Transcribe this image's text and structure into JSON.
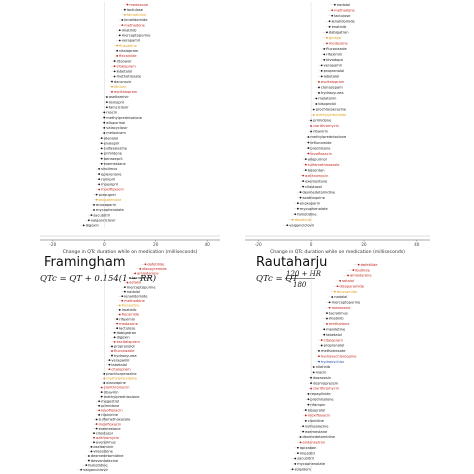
{
  "chart_data": [
    {
      "type": "scatter",
      "panel": "top-left",
      "title": "",
      "xlabel": "Change in QTc duration while on medication (milliseconds)",
      "xticks": [
        -20,
        0,
        20,
        40
      ],
      "xlim": [
        -25,
        45
      ],
      "drugs": [
        {
          "name": "medazone",
          "value": 9,
          "color": "red"
        },
        {
          "name": "lactulose",
          "value": 8,
          "color": "black"
        },
        {
          "name": "famotidine",
          "value": 8,
          "color": "orange"
        },
        {
          "name": "lenalidomide",
          "value": 7,
          "color": "black"
        },
        {
          "name": "methadone",
          "value": 7,
          "color": "red"
        },
        {
          "name": "imatinib",
          "value": 6,
          "color": "black"
        },
        {
          "name": "mercaptopurine",
          "value": 6,
          "color": "black"
        },
        {
          "name": "verapamil",
          "value": 6,
          "color": "black"
        },
        {
          "name": "fluoxetine",
          "value": 5,
          "color": "orange"
        },
        {
          "name": "citalopram",
          "value": 5,
          "color": "black"
        },
        {
          "name": "flecainide",
          "value": 5,
          "color": "red"
        },
        {
          "name": "ritonavir",
          "value": 4,
          "color": "black"
        },
        {
          "name": "citalopram",
          "value": 4,
          "color": "red"
        },
        {
          "name": "labetalol",
          "value": 4,
          "color": "black"
        },
        {
          "name": "methotrexate",
          "value": 4,
          "color": "black"
        },
        {
          "name": "darunavir",
          "value": 3,
          "color": "black"
        },
        {
          "name": "lithium",
          "value": 3,
          "color": "orange"
        },
        {
          "name": "escitalopram",
          "value": 3,
          "color": "red"
        },
        {
          "name": "oseltamivir",
          "value": 1,
          "color": "black"
        },
        {
          "name": "lisinopril",
          "value": 1,
          "color": "black"
        },
        {
          "name": "famciclovir",
          "value": 1,
          "color": "black"
        },
        {
          "name": "niacin",
          "value": 0,
          "color": "black"
        },
        {
          "name": "methylprednisolone",
          "value": 0,
          "color": "black"
        },
        {
          "name": "allopurinol",
          "value": 0,
          "color": "black"
        },
        {
          "name": "valacyclovir",
          "value": 0,
          "color": "black"
        },
        {
          "name": "meloxicam",
          "value": 0,
          "color": "black"
        },
        {
          "name": "atenolol",
          "value": -1,
          "color": "black"
        },
        {
          "name": "enalapril",
          "value": -1,
          "color": "black"
        },
        {
          "name": "sulfasalazine",
          "value": -1,
          "color": "black"
        },
        {
          "name": "primidone",
          "value": -1,
          "color": "black"
        },
        {
          "name": "benazepril",
          "value": -1,
          "color": "black"
        },
        {
          "name": "exemestane",
          "value": -1,
          "color": "black"
        },
        {
          "name": "sirolimus",
          "value": -2,
          "color": "black"
        },
        {
          "name": "eplerenone",
          "value": -2,
          "color": "black"
        },
        {
          "name": "ramipril",
          "value": -2,
          "color": "black"
        },
        {
          "name": "moexipril",
          "value": -2,
          "color": "black"
        },
        {
          "name": "moxifloxacin",
          "value": -2,
          "color": "red"
        },
        {
          "name": "prasugrel",
          "value": -3,
          "color": "black"
        },
        {
          "name": "propafenone",
          "value": -3,
          "color": "orange"
        },
        {
          "name": "enoxaparin",
          "value": -4,
          "color": "black"
        },
        {
          "name": "mycophenolate",
          "value": -4,
          "color": "black"
        },
        {
          "name": "sacubitril",
          "value": -5,
          "color": "black"
        },
        {
          "name": "valganciclovir",
          "value": -6,
          "color": "black"
        },
        {
          "name": "digoxin",
          "value": -8,
          "color": "black"
        }
      ]
    },
    {
      "type": "scatter",
      "panel": "top-right",
      "title": "",
      "xlabel": "Change in QTc duration while on medication (milliseconds)",
      "xticks": [
        -20,
        0,
        20,
        40
      ],
      "xlim": [
        -25,
        45
      ],
      "drugs": [
        {
          "name": "nadolol",
          "value": 9,
          "color": "black"
        },
        {
          "name": "methadone",
          "value": 8,
          "color": "red"
        },
        {
          "name": "lactulose",
          "value": 8,
          "color": "black"
        },
        {
          "name": "lenalidomide",
          "value": 7,
          "color": "black"
        },
        {
          "name": "imatinib",
          "value": 7,
          "color": "black"
        },
        {
          "name": "dabigatran",
          "value": 6,
          "color": "black"
        },
        {
          "name": "ginkgo",
          "value": 6,
          "color": "orange"
        },
        {
          "name": "medazone",
          "value": 6,
          "color": "red"
        },
        {
          "name": "fluconazole",
          "value": 5,
          "color": "black"
        },
        {
          "name": "rifaximin",
          "value": 5,
          "color": "black"
        },
        {
          "name": "levodopa",
          "value": 5,
          "color": "black"
        },
        {
          "name": "verapamil",
          "value": 4,
          "color": "black"
        },
        {
          "name": "propranolol",
          "value": 4,
          "color": "black"
        },
        {
          "name": "labetalol",
          "value": 4,
          "color": "black"
        },
        {
          "name": "escitalopram",
          "value": 3,
          "color": "red"
        },
        {
          "name": "clonazepam",
          "value": 3,
          "color": "black"
        },
        {
          "name": "hydroxyurea",
          "value": 3,
          "color": "black"
        },
        {
          "name": "melatonin",
          "value": 2,
          "color": "black"
        },
        {
          "name": "bisoprolol",
          "value": 2,
          "color": "black"
        },
        {
          "name": "prochlorperazine",
          "value": 1,
          "color": "black"
        },
        {
          "name": "methylphenidate",
          "value": 1,
          "color": "orange"
        },
        {
          "name": "primidone",
          "value": 0,
          "color": "black"
        },
        {
          "name": "clarithromycin",
          "value": 0,
          "color": "red"
        },
        {
          "name": "ribavirin",
          "value": 0,
          "color": "black"
        },
        {
          "name": "methylprednisolone",
          "value": -1,
          "color": "black"
        },
        {
          "name": "leflunomide",
          "value": -1,
          "color": "black"
        },
        {
          "name": "prednisone",
          "value": -1,
          "color": "black"
        },
        {
          "name": "levofloxacin",
          "value": -1,
          "color": "red"
        },
        {
          "name": "allopurinol",
          "value": -2,
          "color": "black"
        },
        {
          "name": "sulfamethoxazole",
          "value": -2,
          "color": "red"
        },
        {
          "name": "bosentan",
          "value": -2,
          "color": "black"
        },
        {
          "name": "azithromycin",
          "value": -3,
          "color": "red"
        },
        {
          "name": "exemestane",
          "value": -3,
          "color": "black"
        },
        {
          "name": "cilostazol",
          "value": -3,
          "color": "black"
        },
        {
          "name": "dexmedetomidine",
          "value": -4,
          "color": "black"
        },
        {
          "name": "azathioprine",
          "value": -4,
          "color": "black"
        },
        {
          "name": "enoxaparin",
          "value": -5,
          "color": "black"
        },
        {
          "name": "mycophenolate",
          "value": -5,
          "color": "black"
        },
        {
          "name": "famotidine",
          "value": -6,
          "color": "black"
        },
        {
          "name": "dasatinib",
          "value": -7,
          "color": "orange"
        },
        {
          "name": "valganciclovir",
          "value": -9,
          "color": "black"
        }
      ]
    },
    {
      "type": "scatter",
      "panel": "bottom-left",
      "title": "Framingham",
      "formula": "QTc = QT + 0.154(1 − RR)",
      "xlabel": "",
      "xlim": [
        -25,
        45
      ],
      "drugs": [
        {
          "name": "dofetilide",
          "value": 16,
          "color": "red"
        },
        {
          "name": "disopyramide",
          "value": 14,
          "color": "red"
        },
        {
          "name": "amiodarone",
          "value": 12,
          "color": "red"
        },
        {
          "name": "tacrolimus",
          "value": 10,
          "color": "black"
        },
        {
          "name": "sotalol",
          "value": 9,
          "color": "red"
        },
        {
          "name": "mercaptopurine",
          "value": 8,
          "color": "black"
        },
        {
          "name": "nadolol",
          "value": 8,
          "color": "black"
        },
        {
          "name": "lenalidomide",
          "value": 7,
          "color": "black"
        },
        {
          "name": "methadone",
          "value": 7,
          "color": "red"
        },
        {
          "name": "fluoxetine",
          "value": 6,
          "color": "orange"
        },
        {
          "name": "imatinib",
          "value": 6,
          "color": "black"
        },
        {
          "name": "flecainide",
          "value": 6,
          "color": "red"
        },
        {
          "name": "rifaximin",
          "value": 5,
          "color": "black"
        },
        {
          "name": "medazone",
          "value": 5,
          "color": "red"
        },
        {
          "name": "lactulose",
          "value": 5,
          "color": "black"
        },
        {
          "name": "dabigatran",
          "value": 4,
          "color": "black"
        },
        {
          "name": "digoxin",
          "value": 4,
          "color": "black"
        },
        {
          "name": "escitalopram",
          "value": 4,
          "color": "red"
        },
        {
          "name": "propranolol",
          "value": 3,
          "color": "black"
        },
        {
          "name": "fluconazole",
          "value": 3,
          "color": "red"
        },
        {
          "name": "hydroxyurea",
          "value": 3,
          "color": "black"
        },
        {
          "name": "verapamil",
          "value": 2,
          "color": "black"
        },
        {
          "name": "labetalol",
          "value": 2,
          "color": "black"
        },
        {
          "name": "citalopram",
          "value": 2,
          "color": "red"
        },
        {
          "name": "prochlorperazine",
          "value": 0,
          "color": "black"
        },
        {
          "name": "methylphenidate",
          "value": 0,
          "color": "orange"
        },
        {
          "name": "olanzapine",
          "value": 0,
          "color": "black"
        },
        {
          "name": "clarithromycin",
          "value": -1,
          "color": "red"
        },
        {
          "name": "ribavirin",
          "value": -1,
          "color": "black"
        },
        {
          "name": "methylprednisolone",
          "value": -1,
          "color": "black"
        },
        {
          "name": "megestrol",
          "value": -2,
          "color": "black"
        },
        {
          "name": "primidone",
          "value": -2,
          "color": "black"
        },
        {
          "name": "levofloxacin",
          "value": -2,
          "color": "red"
        },
        {
          "name": "rilpivirine",
          "value": -2,
          "color": "black"
        },
        {
          "name": "sulfamethoxazole",
          "value": -3,
          "color": "black"
        },
        {
          "name": "moxifloxacin",
          "value": -3,
          "color": "red"
        },
        {
          "name": "exemestane",
          "value": -3,
          "color": "black"
        },
        {
          "name": "cilostazol",
          "value": -4,
          "color": "black"
        },
        {
          "name": "azithromycin",
          "value": -4,
          "color": "red"
        },
        {
          "name": "everolimus",
          "value": -4,
          "color": "black"
        },
        {
          "name": "oseltamivir",
          "value": -5,
          "color": "black"
        },
        {
          "name": "vilazodone",
          "value": -5,
          "color": "black"
        },
        {
          "name": "dexmedetomidine",
          "value": -6,
          "color": "black"
        },
        {
          "name": "desvenlafaxine",
          "value": -6,
          "color": "black"
        },
        {
          "name": "famotidine",
          "value": -7,
          "color": "black"
        },
        {
          "name": "valganciclovir",
          "value": -9,
          "color": "black"
        }
      ]
    },
    {
      "type": "scatter",
      "panel": "bottom-right",
      "title": "Rautaharju",
      "formula_lhs": "QTc = QT",
      "formula_num": "120 + HR",
      "formula_den": "180",
      "xlabel": "",
      "xlim": [
        -25,
        45
      ],
      "drugs": [
        {
          "name": "dofetilide",
          "value": 18,
          "color": "red"
        },
        {
          "name": "ibutilide",
          "value": 16,
          "color": "red"
        },
        {
          "name": "amiodarone",
          "value": 14,
          "color": "red"
        },
        {
          "name": "sotalol",
          "value": 11,
          "color": "red"
        },
        {
          "name": "disopyramide",
          "value": 10,
          "color": "red"
        },
        {
          "name": "lacosamide",
          "value": 9,
          "color": "orange"
        },
        {
          "name": "nadolol",
          "value": 8,
          "color": "black"
        },
        {
          "name": "mercaptopurine",
          "value": 7,
          "color": "black"
        },
        {
          "name": "medazone",
          "value": 7,
          "color": "red"
        },
        {
          "name": "tacrolimus",
          "value": 6,
          "color": "black"
        },
        {
          "name": "imatinib",
          "value": 6,
          "color": "black"
        },
        {
          "name": "methadone",
          "value": 6,
          "color": "red"
        },
        {
          "name": "mexiletine",
          "value": 5,
          "color": "black"
        },
        {
          "name": "labetalol",
          "value": 5,
          "color": "black"
        },
        {
          "name": "citalopram",
          "value": 4,
          "color": "red"
        },
        {
          "name": "propranolol",
          "value": 4,
          "color": "black"
        },
        {
          "name": "methotrexate",
          "value": 3,
          "color": "black"
        },
        {
          "name": "hydroxychloroquine",
          "value": 3,
          "color": "red"
        },
        {
          "name": "hydroxychlor",
          "value": 3,
          "color": "blue"
        },
        {
          "name": "nilotinib",
          "value": 1,
          "color": "black"
        },
        {
          "name": "niacin",
          "value": 1,
          "color": "black"
        },
        {
          "name": "doxazosin",
          "value": 0,
          "color": "black"
        },
        {
          "name": "desmopressin",
          "value": 0,
          "color": "black"
        },
        {
          "name": "clarithromycin",
          "value": 0,
          "color": "red"
        },
        {
          "name": "repaglinide",
          "value": -1,
          "color": "black"
        },
        {
          "name": "prednisolone",
          "value": -1,
          "color": "black"
        },
        {
          "name": "rifampin",
          "value": -1,
          "color": "black"
        },
        {
          "name": "bisoprolol",
          "value": -2,
          "color": "black"
        },
        {
          "name": "moxifloxacin",
          "value": -2,
          "color": "red"
        },
        {
          "name": "clonidine",
          "value": -2,
          "color": "black"
        },
        {
          "name": "sulfasalazine",
          "value": -3,
          "color": "black"
        },
        {
          "name": "exemestane",
          "value": -3,
          "color": "black"
        },
        {
          "name": "dexmedetomidine",
          "value": -4,
          "color": "black"
        },
        {
          "name": "ondansetron",
          "value": -4,
          "color": "red"
        },
        {
          "name": "apixaban",
          "value": -5,
          "color": "black"
        },
        {
          "name": "linezolid",
          "value": -5,
          "color": "black"
        },
        {
          "name": "sacubitril",
          "value": -6,
          "color": "black"
        },
        {
          "name": "mycophenolate",
          "value": -6,
          "color": "black"
        },
        {
          "name": "zolpidem",
          "value": -7,
          "color": "black"
        }
      ]
    }
  ]
}
